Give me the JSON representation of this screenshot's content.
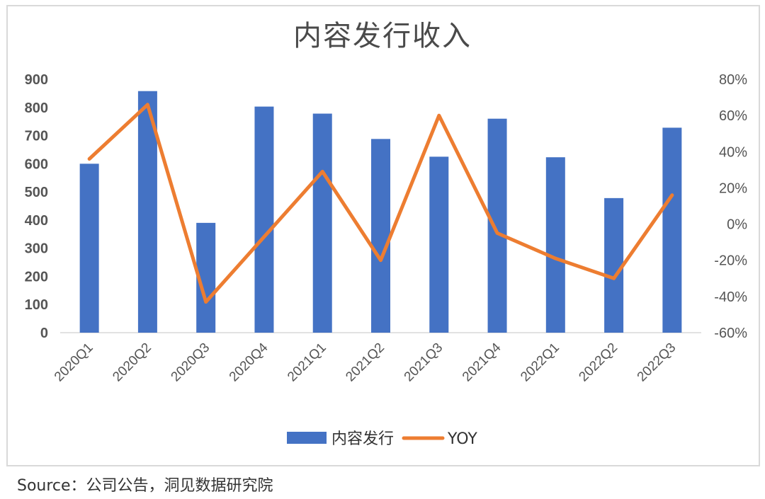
{
  "chart_data": {
    "type": "bar",
    "title": "内容发行收入",
    "categories": [
      "2020Q1",
      "2020Q2",
      "2020Q3",
      "2020Q4",
      "2021Q1",
      "2021Q2",
      "2021Q3",
      "2021Q4",
      "2022Q1",
      "2022Q2",
      "2022Q3"
    ],
    "series": [
      {
        "name": "内容发行",
        "type": "bar",
        "axis": "left",
        "color": "#4472C4",
        "values": [
          600,
          858,
          390,
          803,
          778,
          688,
          625,
          760,
          623,
          478,
          728
        ]
      },
      {
        "name": "YOY",
        "type": "line",
        "axis": "right",
        "color": "#ED7D31",
        "values": [
          36,
          66,
          -43,
          -7,
          29,
          -20,
          60,
          -5,
          -19,
          -30,
          16
        ]
      }
    ],
    "y_ticks": [
      "900",
      "800",
      "700",
      "600",
      "500",
      "400",
      "300",
      "200",
      "100",
      "0"
    ],
    "y2_ticks": [
      "80%",
      "60%",
      "40%",
      "20%",
      "0%",
      "-20%",
      "-40%",
      "-60%"
    ],
    "ylim": [
      0,
      900
    ],
    "y2lim": [
      -60,
      80
    ],
    "grid": false,
    "legend_position": "bottom"
  },
  "source": "Source：公司公告，洞见数据研究院"
}
